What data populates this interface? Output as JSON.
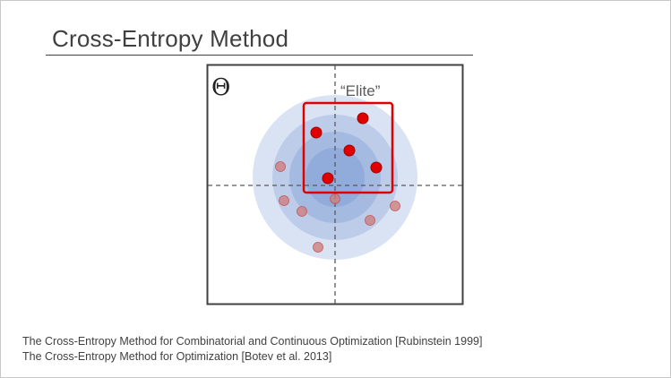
{
  "title": "Cross-Entropy Method",
  "diagram": {
    "theta_symbol": "Θ",
    "elite_label": "“Elite”",
    "colors": {
      "frame": "#404040",
      "axis": "#595959",
      "distribution": "#4472c4",
      "elite_box": "#e00000",
      "elite_point": "#e00000",
      "other_point": "#d08080"
    }
  },
  "references": [
    "The Cross-Entropy Method for Combinatorial and Continuous Optimization [Rubinstein 1999]",
    "The Cross-Entropy Method for Optimization [Botev et al. 2013]"
  ]
}
